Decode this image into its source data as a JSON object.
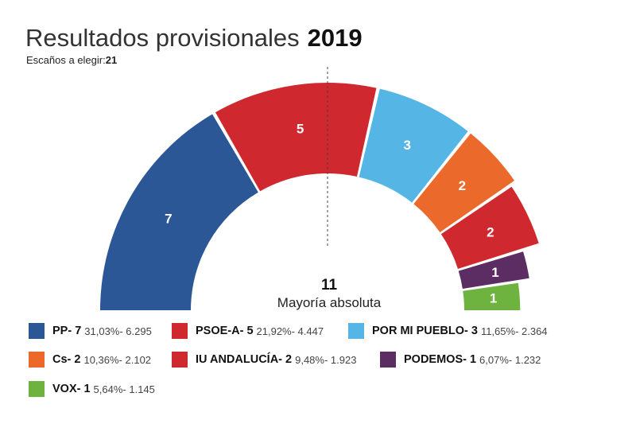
{
  "header": {
    "title": "Resultados provisionales",
    "year": "2019",
    "seats_label": "Escaños a elegir:",
    "seats_value": "21"
  },
  "majority": {
    "value": "11",
    "label": "Mayoría absoluta"
  },
  "chart_data": {
    "type": "pie",
    "subtype": "parliament-semicircle",
    "total_seats": 21,
    "majority": 11,
    "series": [
      {
        "name": "PP",
        "seats": 7,
        "percent": "31,03%",
        "votes": "6.295",
        "color": "#2b5797"
      },
      {
        "name": "PSOE-A",
        "seats": 5,
        "percent": "21,92%",
        "votes": "4.447",
        "color": "#d0282f"
      },
      {
        "name": "POR MI PUEBLO",
        "seats": 3,
        "percent": "11,65%",
        "votes": "2.364",
        "color": "#55b6e6"
      },
      {
        "name": "Cs",
        "seats": 2,
        "percent": "10,36%",
        "votes": "2.102",
        "color": "#eb6a2b"
      },
      {
        "name": "IU ANDALUCÍA",
        "seats": 2,
        "percent": "9,48%",
        "votes": "1.923",
        "color": "#d0282f"
      },
      {
        "name": "PODEMOS",
        "seats": 1,
        "percent": "6,07%",
        "votes": "1.232",
        "color": "#5c2d62"
      },
      {
        "name": "VOX",
        "seats": 1,
        "percent": "5,64%",
        "votes": "1.145",
        "color": "#6eb33f"
      }
    ]
  },
  "legend": [
    {
      "name": "PP- 7",
      "stats": "31,03%- 6.295",
      "color": "#2b5797"
    },
    {
      "name": "PSOE-A- 5",
      "stats": "21,92%- 4.447",
      "color": "#d0282f"
    },
    {
      "name": "POR MI PUEBLO- 3",
      "stats": "11,65%- 2.364",
      "color": "#55b6e6"
    },
    {
      "name": "Cs- 2",
      "stats": "10,36%- 2.102",
      "color": "#eb6a2b"
    },
    {
      "name": "IU ANDALUCÍA- 2",
      "stats": "9,48%- 1.923",
      "color": "#d0282f"
    },
    {
      "name": "PODEMOS- 1",
      "stats": "6,07%- 1.232",
      "color": "#5c2d62"
    },
    {
      "name": "VOX- 1",
      "stats": "5,64%- 1.145",
      "color": "#6eb33f"
    }
  ]
}
